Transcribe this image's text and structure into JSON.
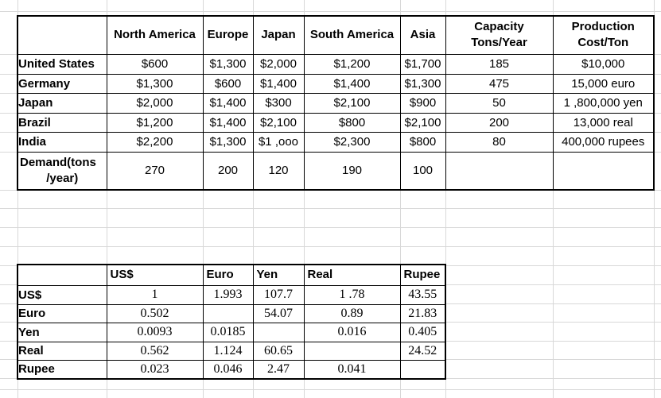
{
  "app": {
    "background_color": "#ffffff",
    "gridline_color": "#d8d8d8",
    "table_border_color": "#000000"
  },
  "shipping_table": {
    "corner": "",
    "col_headers": [
      "North America",
      "Europe",
      "Japan",
      "South America",
      "Asia",
      "Capacity\nTons/Year",
      "Production\nCost/Ton"
    ],
    "rows": [
      {
        "label": "United States",
        "values": [
          "$600",
          "$1,300",
          "$2,000",
          "$1,200",
          "$1,700",
          "185",
          "$10,000"
        ]
      },
      {
        "label": "Germany",
        "values": [
          "$1,300",
          "$600",
          "$1,400",
          "$1,400",
          "$1,300",
          "475",
          "15,000 euro"
        ]
      },
      {
        "label": "Japan",
        "values": [
          "$2,000",
          "$1,400",
          "$300",
          "$2,100",
          "$900",
          "50",
          "1 ,800,000 yen"
        ]
      },
      {
        "label": "Brazil",
        "values": [
          "$1,200",
          "$1,400",
          "$2,100",
          "$800",
          "$2,100",
          "200",
          "13,000 real"
        ]
      },
      {
        "label": "India",
        "values": [
          "$2,200",
          "$1,300",
          "$1 ,ooo",
          "$2,300",
          "$800",
          "80",
          "400,000 rupees"
        ]
      },
      {
        "label_lines": [
          "Demand(tons",
          "/year)"
        ],
        "values": [
          "270",
          "200",
          "120",
          "190",
          "100",
          "",
          ""
        ]
      }
    ]
  },
  "exchange_table": {
    "corner": "",
    "col_headers": [
      "US$",
      "Euro",
      "Yen",
      "Real",
      "Rupee"
    ],
    "rows": [
      {
        "label": "US$",
        "values": [
          "1",
          "1.993",
          "107.7",
          "1 .78",
          "43.55"
        ]
      },
      {
        "label": "Euro",
        "values": [
          "0.502",
          "",
          "54.07",
          "0.89",
          "21.83"
        ]
      },
      {
        "label": "Yen",
        "values": [
          "0.0093",
          "0.0185",
          "",
          "0.016",
          "0.405"
        ]
      },
      {
        "label": "Real",
        "values": [
          "0.562",
          "1.124",
          "60.65",
          "",
          "24.52"
        ]
      },
      {
        "label": "Rupee",
        "values": [
          "0.023",
          "0.046",
          "2.47",
          "0.041",
          ""
        ]
      }
    ]
  }
}
